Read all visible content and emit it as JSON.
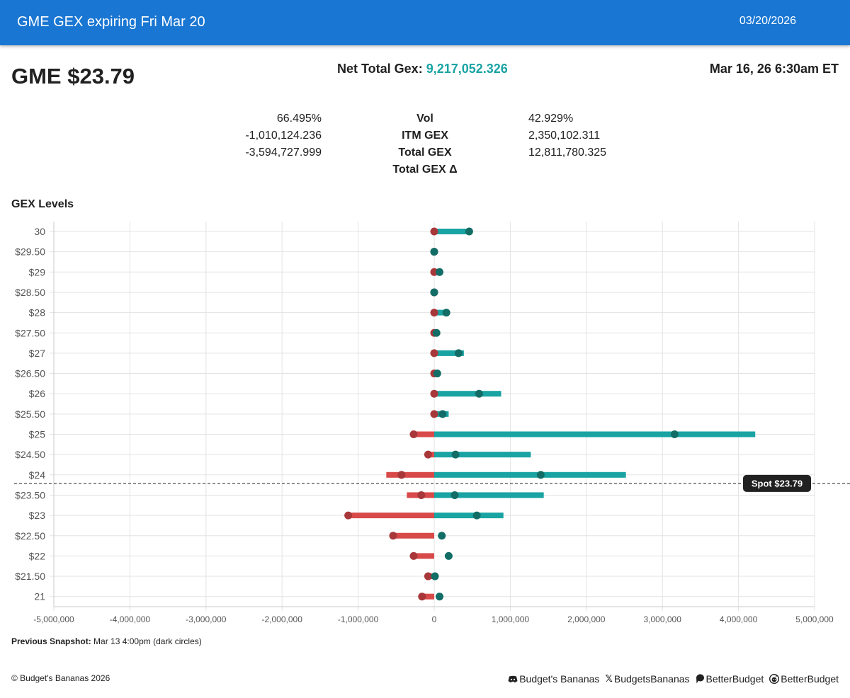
{
  "header": {
    "title": "GME GEX expiring Fri Mar 20",
    "date": "03/20/2026"
  },
  "summary": {
    "ticker_price": "GME $23.79",
    "net_label": "Net Total Gex:",
    "net_value": "9,217,052.326",
    "as_of": "Mar 16, 26 6:30am ET"
  },
  "stats": {
    "left": [
      "66.495%",
      "-1,010,124.236",
      "-3,594,727.999"
    ],
    "labels": [
      "Vol",
      "ITM GEX",
      "Total GEX",
      "Total GEX Δ"
    ],
    "right": [
      "42.929%",
      "2,350,102.311",
      "12,811,780.325"
    ]
  },
  "section_title": "GEX Levels",
  "chart_data": {
    "type": "bar",
    "orientation": "horizontal",
    "categories": [
      "30",
      "$29.50",
      "$29",
      "$28.50",
      "$28",
      "$27.50",
      "$27",
      "$26.50",
      "$26",
      "$25.50",
      "$25",
      "$24.50",
      "$24",
      "$23.50",
      "$23",
      "$22.50",
      "$22",
      "$21.50",
      "21"
    ],
    "strikes": [
      30,
      29.5,
      29,
      28.5,
      28,
      27.5,
      27,
      26.5,
      26,
      25.5,
      25,
      24.5,
      24,
      23.5,
      23,
      22.5,
      22,
      21.5,
      21
    ],
    "series": [
      {
        "values": [
          460000,
          0,
          40000,
          0,
          160000,
          20000,
          390000,
          40000,
          880000,
          190000,
          4220000,
          1270000,
          2520000,
          1440000,
          910000,
          0,
          0,
          0,
          0
        ]
      },
      {
        "values": [
          0,
          0,
          0,
          0,
          0,
          -20000,
          0,
          -20000,
          0,
          0,
          -270000,
          -80000,
          -630000,
          -360000,
          -1110000,
          -530000,
          -270000,
          -80000,
          -160000
        ]
      }
    ],
    "previous_snapshot": {
      "positive": [
        460000,
        0,
        70000,
        0,
        160000,
        30000,
        320000,
        40000,
        590000,
        110000,
        3160000,
        280000,
        1400000,
        270000,
        560000,
        100000,
        190000,
        10000,
        70000
      ],
      "negative": [
        0,
        0,
        0,
        0,
        0,
        0,
        0,
        0,
        0,
        0,
        -270000,
        -80000,
        -430000,
        -170000,
        -1130000,
        -540000,
        -270000,
        -80000,
        -160000
      ]
    },
    "xlim": [
      -5000000,
      5000000
    ],
    "xticks": [
      -5000000,
      -4000000,
      -3000000,
      -2000000,
      -1000000,
      0,
      1000000,
      2000000,
      3000000,
      4000000,
      5000000
    ],
    "xtick_labels": [
      "-5,000,000",
      "-4,000,000",
      "-3,000,000",
      "-2,000,000",
      "-1,000,000",
      "0",
      "1,000,000",
      "2,000,000",
      "3,000,000",
      "4,000,000",
      "5,000,000"
    ],
    "spot": 23.79,
    "spot_label": "Spot $23.79",
    "grid": true,
    "colors": {
      "positive": "#1aa3a3",
      "negative": "#d84a4a",
      "positive_dot": "#126d66",
      "negative_dot": "#a8373a",
      "grid": "#e3e3e3",
      "spot_box": "#212121"
    }
  },
  "snapshot": {
    "label": "Previous Snapshot:",
    "text": "Mar 13 4:00pm (dark circles)"
  },
  "footer": {
    "copyright": "© Budget's Bananas 2026",
    "links": [
      {
        "icon": "discord-icon",
        "label": "Budget's Bananas"
      },
      {
        "icon": "x-icon",
        "label": "BudgetsBananas"
      },
      {
        "icon": "patreon-icon",
        "label": "BetterBudget"
      },
      {
        "icon": "reddit-icon",
        "label": "BetterBudget"
      }
    ]
  }
}
